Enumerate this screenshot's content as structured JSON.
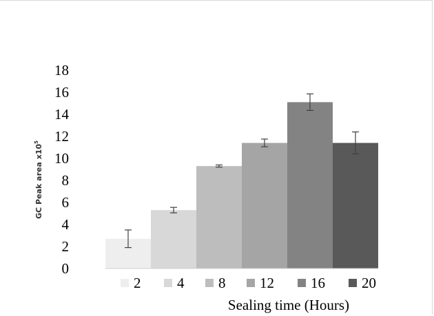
{
  "chart_data": {
    "type": "bar",
    "categories": [
      "2",
      "4",
      "8",
      "12",
      "16",
      "20"
    ],
    "values": [
      2.7,
      5.3,
      9.3,
      11.4,
      15.1,
      11.4
    ],
    "errors": [
      0.8,
      0.25,
      0.1,
      0.35,
      0.75,
      1.0
    ],
    "colors": [
      "#eeeeee",
      "#d8d8d8",
      "#bdbdbd",
      "#a5a5a5",
      "#838383",
      "#595959"
    ],
    "ylim": [
      0,
      18
    ],
    "yticks": [
      0,
      2,
      4,
      6,
      8,
      10,
      12,
      14,
      16,
      18
    ],
    "xlabel": "Sealing time (Hours)",
    "ylabel": "GC Peak area x10",
    "ylabel_sup": "5",
    "legend": [
      "2",
      "4",
      "8",
      "12",
      "16",
      "20"
    ],
    "legend_position": "bottom",
    "grid": false
  }
}
